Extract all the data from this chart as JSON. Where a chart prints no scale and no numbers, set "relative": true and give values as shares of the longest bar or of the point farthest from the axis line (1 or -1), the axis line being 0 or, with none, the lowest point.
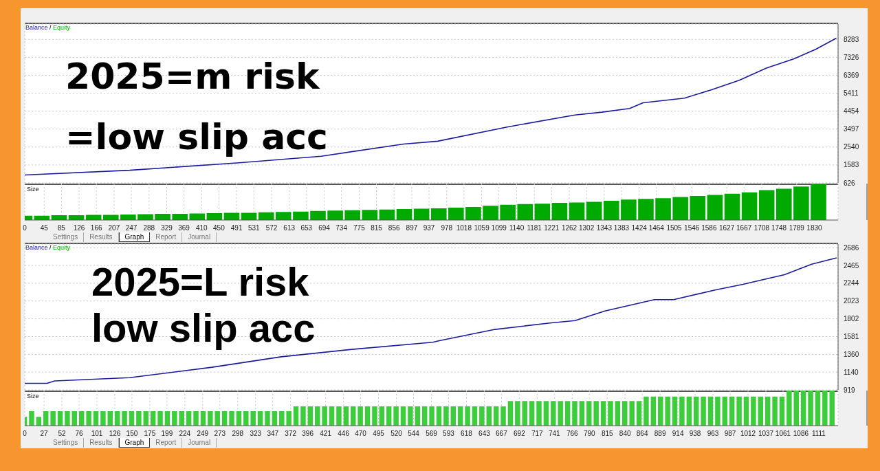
{
  "chart_data": [
    {
      "type": "line",
      "x": [
        0,
        243,
        497,
        687,
        878,
        957,
        1116,
        1275,
        1338,
        1402,
        1433,
        1529,
        1592,
        1656,
        1719,
        1783,
        1833,
        1881
      ],
      "xlim": [
        0,
        1885
      ],
      "xticks": [
        0,
        45,
        85,
        126,
        166,
        207,
        247,
        288,
        329,
        369,
        410,
        450,
        491,
        531,
        572,
        613,
        653,
        694,
        734,
        775,
        815,
        856,
        897,
        937,
        978,
        1018,
        1059,
        1099,
        1140,
        1181,
        1221,
        1262,
        1302,
        1343,
        1383,
        1424,
        1464,
        1505,
        1546,
        1586,
        1627,
        1667,
        1708,
        1748,
        1789,
        1830
      ],
      "ylim": [
        626,
        9100
      ],
      "yticks": [
        626,
        1583,
        2540,
        3497,
        4454,
        5411,
        6369,
        7326,
        8283
      ],
      "grid": true,
      "legend": "top left",
      "tick_labels": "y",
      "series": [
        {
          "name": "Equity",
          "color": "#00b000",
          "values": [
            null,
            null,
            null,
            null,
            null,
            null,
            null,
            null,
            null,
            null,
            null,
            null,
            null,
            null,
            null,
            null,
            null,
            null
          ]
        },
        {
          "name": "Balance",
          "color": "#1a1a9c",
          "values": [
            1050,
            1300,
            1700,
            2050,
            2700,
            2850,
            3600,
            4250,
            4400,
            4600,
            4900,
            5150,
            5600,
            6100,
            6750,
            7250,
            7750,
            8350
          ]
        }
      ],
      "annotations": [
        "2025=m risk",
        "=low slip acc",
        "/"
      ]
    },
    {
      "type": "bar",
      "title": "Size",
      "relative": true,
      "grid": "x",
      "tick_labels": "x",
      "color": "#00aa00",
      "xlim": [
        0,
        1885
      ],
      "xticks": [
        0,
        45,
        85,
        126,
        166,
        207,
        247,
        288,
        329,
        369,
        410,
        450,
        491,
        531,
        572,
        613,
        653,
        694,
        734,
        775,
        815,
        856,
        897,
        937,
        978,
        1018,
        1059,
        1099,
        1140,
        1181,
        1221,
        1262,
        1302,
        1343,
        1383,
        1424,
        1464,
        1505,
        1546,
        1586,
        1627,
        1667,
        1708,
        1748,
        1789,
        1830
      ],
      "x": [
        0,
        40,
        80,
        120,
        160,
        200,
        240,
        280,
        320,
        360,
        400,
        440,
        480,
        520,
        560,
        600,
        640,
        680,
        720,
        760,
        800,
        840,
        880,
        920,
        960,
        1000,
        1040,
        1080,
        1120,
        1160,
        1200,
        1240,
        1280,
        1320,
        1360,
        1400,
        1440,
        1480,
        1520,
        1560,
        1600,
        1640,
        1680,
        1720,
        1760,
        1800,
        1840
      ],
      "values": [
        0.12,
        0.12,
        0.13,
        0.13,
        0.14,
        0.14,
        0.15,
        0.16,
        0.17,
        0.17,
        0.18,
        0.19,
        0.2,
        0.2,
        0.21,
        0.22,
        0.23,
        0.25,
        0.26,
        0.27,
        0.28,
        0.29,
        0.3,
        0.31,
        0.32,
        0.34,
        0.36,
        0.39,
        0.42,
        0.44,
        0.45,
        0.47,
        0.48,
        0.5,
        0.53,
        0.56,
        0.58,
        0.6,
        0.63,
        0.66,
        0.69,
        0.72,
        0.76,
        0.82,
        0.86,
        0.92,
        1
      ],
      "annotations": [
        "Settings",
        "Results",
        "Graph",
        "Report",
        "Journal"
      ]
    },
    {
      "type": "line",
      "x": [
        0,
        31,
        42,
        147,
        262,
        359,
        455,
        571,
        580,
        658,
        735,
        770,
        812,
        881,
        908,
        966,
        1005,
        1063,
        1101,
        1136
      ],
      "xlim": [
        0,
        1138
      ],
      "xticks": [
        0,
        27,
        52,
        76,
        101,
        126,
        150,
        175,
        199,
        224,
        249,
        273,
        298,
        323,
        347,
        372,
        396,
        421,
        446,
        470,
        495,
        520,
        544,
        569,
        593,
        618,
        643,
        667,
        692,
        717,
        741,
        766,
        790,
        815,
        840,
        864,
        889,
        914,
        938,
        963,
        987,
        1012,
        1037,
        1061,
        1086,
        1111
      ],
      "ylim": [
        919,
        2730
      ],
      "yticks": [
        919,
        1140,
        1360,
        1581,
        1802,
        2023,
        2244,
        2465,
        2686
      ],
      "grid": true,
      "legend": "top left",
      "tick_labels": "y",
      "series": [
        {
          "name": "Equity",
          "color": "#00b000",
          "values": [
            null,
            null,
            null,
            null,
            null,
            null,
            null,
            null,
            null,
            null,
            null,
            null,
            null,
            null,
            null,
            null,
            null,
            null,
            null,
            null
          ]
        },
        {
          "name": "Balance",
          "color": "#1a1a9c",
          "values": [
            1000,
            1000,
            1030,
            1070,
            1200,
            1330,
            1420,
            1510,
            1530,
            1670,
            1750,
            1780,
            1900,
            2040,
            2040,
            2160,
            2230,
            2350,
            2480,
            2560
          ]
        }
      ],
      "annotations": [
        "2025=L risk",
        "low slip acc",
        "/"
      ]
    },
    {
      "type": "bar",
      "title": "Size",
      "relative": true,
      "grid": "x",
      "tick_labels": "x",
      "color": "#3ccc3c",
      "xlim": [
        0,
        1138
      ],
      "xticks": [
        0,
        27,
        52,
        76,
        101,
        126,
        150,
        175,
        199,
        224,
        249,
        273,
        298,
        323,
        347,
        372,
        396,
        421,
        446,
        470,
        495,
        520,
        544,
        569,
        593,
        618,
        643,
        667,
        692,
        717,
        741,
        766,
        790,
        815,
        840,
        864,
        889,
        914,
        938,
        963,
        987,
        1012,
        1037,
        1061,
        1086,
        1111
      ],
      "x": [
        0,
        10,
        20,
        30,
        40,
        50,
        60,
        70,
        80,
        90,
        100,
        110,
        120,
        130,
        140,
        150,
        160,
        170,
        180,
        190,
        200,
        210,
        220,
        230,
        240,
        250,
        260,
        270,
        280,
        290,
        300,
        310,
        320,
        330,
        340,
        350,
        360,
        370,
        380,
        390,
        400,
        410,
        420,
        430,
        440,
        450,
        460,
        470,
        480,
        490,
        500,
        510,
        520,
        530,
        540,
        550,
        560,
        570,
        580,
        590,
        600,
        610,
        620,
        630,
        640,
        650,
        660,
        670,
        680,
        690,
        700,
        710,
        720,
        730,
        740,
        750,
        760,
        770,
        780,
        790,
        800,
        810,
        820,
        830,
        840,
        850,
        860,
        870,
        880,
        890,
        900,
        910,
        920,
        930,
        940,
        950,
        960,
        970,
        980,
        990,
        1000,
        1010,
        1020,
        1030,
        1040,
        1050,
        1060,
        1070,
        1080,
        1090,
        1100,
        1110,
        1120,
        1130
      ],
      "values": [
        0.25,
        0.41,
        0.25,
        0.41,
        0.41,
        0.41,
        0.41,
        0.41,
        0.41,
        0.41,
        0.41,
        0.41,
        0.41,
        0.41,
        0.41,
        0.41,
        0.41,
        0.41,
        0.41,
        0.41,
        0.41,
        0.41,
        0.41,
        0.41,
        0.41,
        0.41,
        0.41,
        0.41,
        0.41,
        0.41,
        0.41,
        0.41,
        0.41,
        0.41,
        0.41,
        0.41,
        0.41,
        0.41,
        0.55,
        0.55,
        0.55,
        0.55,
        0.55,
        0.55,
        0.55,
        0.55,
        0.55,
        0.55,
        0.55,
        0.55,
        0.55,
        0.55,
        0.55,
        0.55,
        0.55,
        0.55,
        0.55,
        0.55,
        0.55,
        0.55,
        0.55,
        0.55,
        0.55,
        0.55,
        0.55,
        0.55,
        0.55,
        0.55,
        0.7,
        0.7,
        0.7,
        0.7,
        0.7,
        0.7,
        0.7,
        0.7,
        0.7,
        0.7,
        0.7,
        0.7,
        0.7,
        0.7,
        0.7,
        0.7,
        0.7,
        0.7,
        0.7,
        0.83,
        0.83,
        0.83,
        0.83,
        0.83,
        0.83,
        0.83,
        0.83,
        0.83,
        0.83,
        0.83,
        0.83,
        0.83,
        0.83,
        0.83,
        0.83,
        0.83,
        0.83,
        0.83,
        0.83,
        1,
        1,
        1,
        1,
        1,
        1,
        1
      ],
      "annotations": [
        "Settings",
        "Results",
        "Graph",
        "Report",
        "Journal"
      ]
    }
  ]
}
